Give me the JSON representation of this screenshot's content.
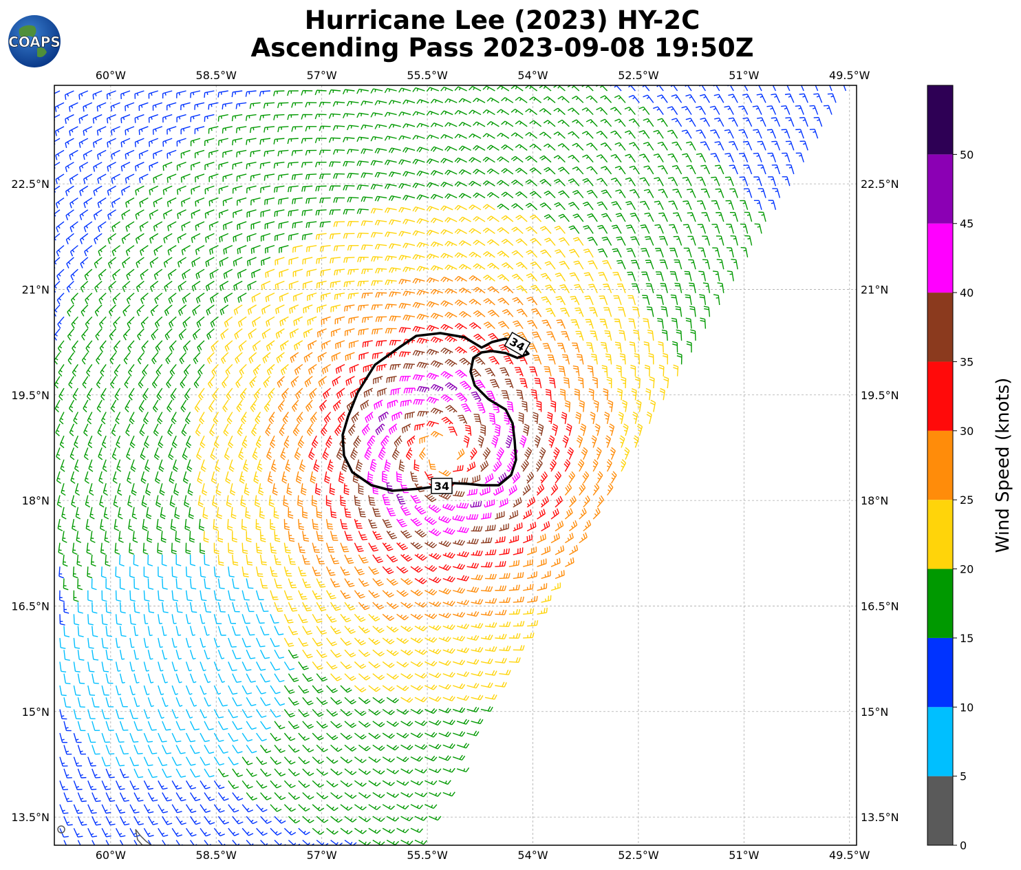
{
  "title_line1": "Hurricane Lee (2023) HY-2C",
  "title_line2": "Ascending Pass 2023-09-08 19:50Z",
  "logo_text": "COAPS",
  "map": {
    "lon_ticks": [
      "60°W",
      "58.5°W",
      "57°W",
      "55.5°W",
      "54°W",
      "52.5°W",
      "51°W",
      "49.5°W"
    ],
    "lon_values": [
      -60,
      -58.5,
      -57,
      -55.5,
      -54,
      -52.5,
      -51,
      -49.5
    ],
    "lat_ticks": [
      "22.5°N",
      "21°N",
      "19.5°N",
      "18°N",
      "16.5°N",
      "15°N",
      "13.5°N"
    ],
    "lat_values": [
      22.5,
      21,
      19.5,
      18,
      16.5,
      15,
      13.5
    ],
    "lon_range": [
      -60.8,
      -49.4
    ],
    "lat_range": [
      13.1,
      23.9
    ],
    "storm_center_lon": -55.3,
    "storm_center_lat": 18.7,
    "contour_label": "34",
    "contour_value_knots": 34
  },
  "colorbar": {
    "title": "Wind Speed (knots)",
    "tick_labels": [
      "0",
      "5",
      "10",
      "15",
      "20",
      "25",
      "30",
      "35",
      "40",
      "45",
      "50"
    ],
    "bins": [
      {
        "min": 0,
        "max": 5,
        "color": "#5a5a5a"
      },
      {
        "min": 5,
        "max": 10,
        "color": "#00bfff"
      },
      {
        "min": 10,
        "max": 15,
        "color": "#0033ff"
      },
      {
        "min": 15,
        "max": 20,
        "color": "#009900"
      },
      {
        "min": 20,
        "max": 25,
        "color": "#ffd40a"
      },
      {
        "min": 25,
        "max": 30,
        "color": "#ff8c0a"
      },
      {
        "min": 30,
        "max": 35,
        "color": "#ff0a0a"
      },
      {
        "min": 35,
        "max": 40,
        "color": "#8b3a1e"
      },
      {
        "min": 40,
        "max": 45,
        "color": "#ff00ff"
      },
      {
        "min": 45,
        "max": 50,
        "color": "#8b00b4"
      },
      {
        "min": 50,
        "max": 55,
        "color": "#2e0055"
      }
    ]
  }
}
